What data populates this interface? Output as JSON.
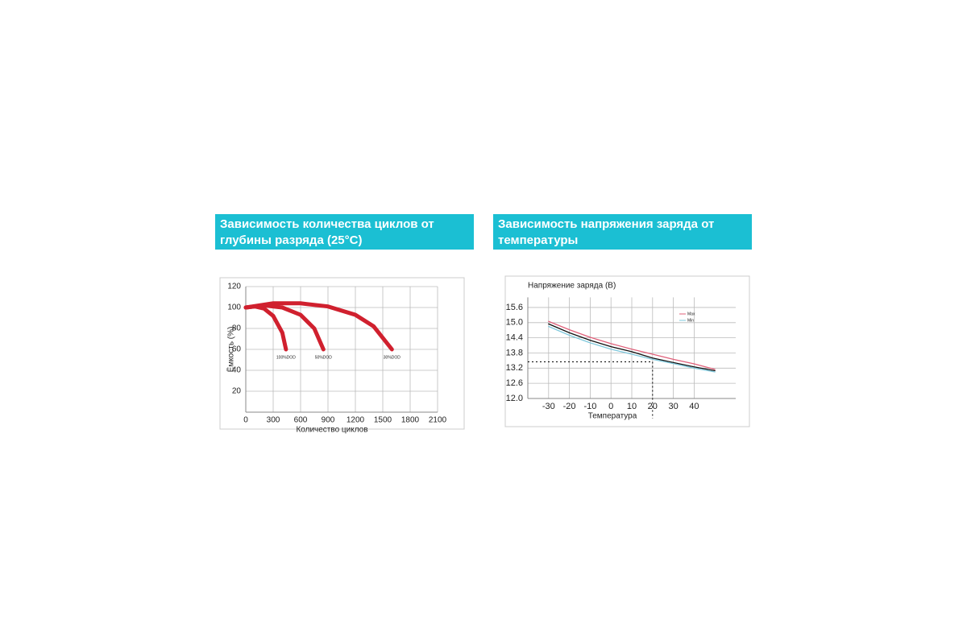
{
  "chart_data": [
    {
      "type": "line",
      "title": "Зависимость количества циклов от глубины разряда (25°C)",
      "y_label": "Ёмкость (%)",
      "x_label": "Количество циклов",
      "xlim": [
        0,
        2100
      ],
      "xticks": [
        0,
        300,
        600,
        900,
        1200,
        1500,
        1800,
        2100
      ],
      "ylim": [
        0,
        120
      ],
      "yticks": [
        20,
        40,
        60,
        80,
        100,
        120
      ],
      "grid": true,
      "series": [
        {
          "name": "100%DOD",
          "color": "#d0202e",
          "x": [
            0,
            100,
            200,
            300,
            400,
            440
          ],
          "values": [
            100,
            101,
            99,
            92,
            76,
            60
          ]
        },
        {
          "name": "50%DOD",
          "color": "#d0202e",
          "x": [
            0,
            200,
            400,
            600,
            750,
            850
          ],
          "values": [
            100,
            102,
            100,
            93,
            80,
            60
          ]
        },
        {
          "name": "30%DOD",
          "color": "#d0202e",
          "x": [
            0,
            300,
            600,
            900,
            1200,
            1400,
            1600
          ],
          "values": [
            100,
            104,
            104,
            101,
            93,
            82,
            60
          ]
        }
      ]
    },
    {
      "type": "line",
      "title": "Зависимость напряжения заряда от температуры",
      "y_label": "Напряжение заряда (В)",
      "x_label": "Температура",
      "xlim": [
        -40,
        60
      ],
      "xticks": [
        -30,
        -20,
        -10,
        0,
        10,
        20,
        30,
        40
      ],
      "ylim": [
        12,
        16
      ],
      "yticks": [
        {
          "value": 12,
          "label": "12.0"
        },
        12.6,
        13.2,
        13.8,
        14.4,
        {
          "value": 15,
          "label": "15.0"
        },
        15.6
      ],
      "grid": true,
      "reference_point": [
        20,
        13.45
      ],
      "series": [
        {
          "name": "Max",
          "color": "#e0607a",
          "x": [
            -30,
            -20,
            -10,
            0,
            10,
            20,
            30,
            40,
            50
          ],
          "values": [
            15.05,
            14.72,
            14.42,
            14.17,
            13.95,
            13.75,
            13.55,
            13.37,
            13.15
          ]
        },
        {
          "color": "#111111",
          "x": [
            -30,
            -20,
            -10,
            0,
            10,
            20,
            30,
            40,
            50
          ],
          "values": [
            14.95,
            14.6,
            14.3,
            14.05,
            13.85,
            13.6,
            13.42,
            13.25,
            13.1
          ]
        },
        {
          "name": "Min",
          "color": "#7fc8dc",
          "x": [
            -30,
            -20,
            -10,
            0,
            10,
            20,
            30,
            40,
            50
          ],
          "values": [
            14.85,
            14.5,
            14.2,
            13.95,
            13.75,
            13.55,
            13.38,
            13.2,
            13.05
          ]
        }
      ]
    }
  ]
}
